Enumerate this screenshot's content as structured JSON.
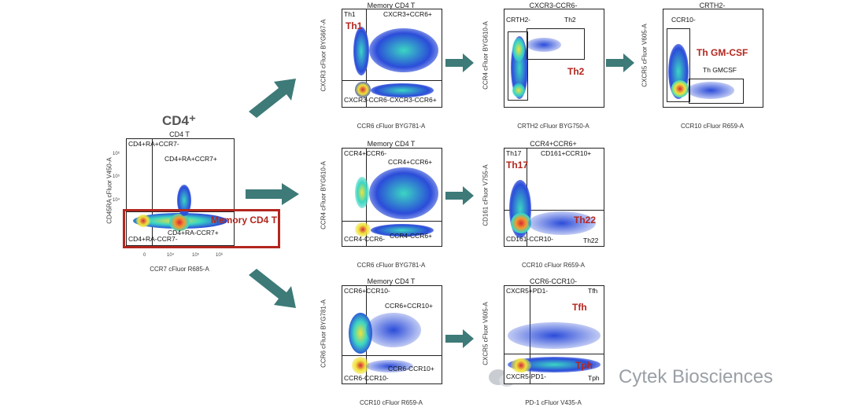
{
  "cd4_heading": "CD4⁺",
  "plots": {
    "root": {
      "title": "CD4 T",
      "xlabel": "CCR7 cFluor R685-A",
      "ylabel": "CD45RA cFluor V450-A",
      "gates": [
        "CD4+RA+CCR7-",
        "CD4+RA+CCR7+",
        "CD4+RA-CCR7+",
        "CD4+RA-CCR7-"
      ],
      "highlight": "Memory CD4 T"
    },
    "row1a": {
      "title": "Memory CD4 T",
      "xlabel": "CCR6 cFluor BYG781-A",
      "ylabel": "CXCR3 cFluor BYG667-A",
      "gates": [
        "Th1",
        "CXCR3+CCR6+",
        "CXCR3-CCR6-",
        "CXCR3-CCR6+"
      ],
      "highlight": "Th1"
    },
    "row1b": {
      "title": "CXCR3-CCR6-",
      "xlabel": "CRTH2 cFluor BYG750-A",
      "ylabel": "CCR4 cFluor BYG610-A",
      "gates": [
        "CRTH2-",
        "Th2"
      ],
      "highlight": "Th2"
    },
    "row1c": {
      "title": "CRTH2-",
      "xlabel": "CCR10 cFluor R659-A",
      "ylabel": "CXCR5 cFluor V605-A",
      "gates": [
        "CCR10-",
        "Th GMCSF"
      ],
      "highlight": "Th GM-CSF"
    },
    "row2a": {
      "title": "Memory CD4 T",
      "xlabel": "CCR6 cFluor BYG781-A",
      "ylabel": "CCR4 cFluor BYG610-A",
      "gates": [
        "CCR4+CCR6-",
        "CCR4+CCR6+",
        "CCR4-CCR6-",
        "CCR4-CCR6+"
      ]
    },
    "row2b": {
      "title": "CCR4+CCR6+",
      "xlabel": "CCR10 cFluor R659-A",
      "ylabel": "CD161 cFluor V755-A",
      "gates": [
        "Th17",
        "CD161+CCR10+",
        "CD161-CCR10-",
        "Th22"
      ],
      "highlight": "Th17",
      "highlight2": "Th22"
    },
    "row3a": {
      "title": "Memory CD4 T",
      "xlabel": "CCR10 cFluor R659-A",
      "ylabel": "CCR6 cFluor BYG781-A",
      "gates": [
        "CCR6+CCR10-",
        "CCR6+CCR10+",
        "CCR6-CCR10+",
        "CCR6-CCR10-"
      ]
    },
    "row3b": {
      "title": "CCR6-CCR10-",
      "xlabel": "PD-1 cFluor V435-A",
      "ylabel": "CXCR5 cFluor V605-A",
      "gates": [
        "CXCR5+PD1-",
        "Tfh",
        "CXCR5-PD1-",
        "Tph"
      ],
      "highlight": "Tfh",
      "highlight2": "Tph"
    }
  },
  "ticks_x": [
    "0",
    "10⁴",
    "10⁵",
    "10⁶"
  ],
  "ticks_y": [
    "10⁶",
    "10⁵",
    "10⁴",
    "0"
  ],
  "watermark": "Cytek Biosciences",
  "colors": {
    "gate_red": "#b3261e",
    "arrow_teal": "#3d7a78",
    "density_low": "#2b4cd9",
    "density_high": "#d7263d"
  }
}
